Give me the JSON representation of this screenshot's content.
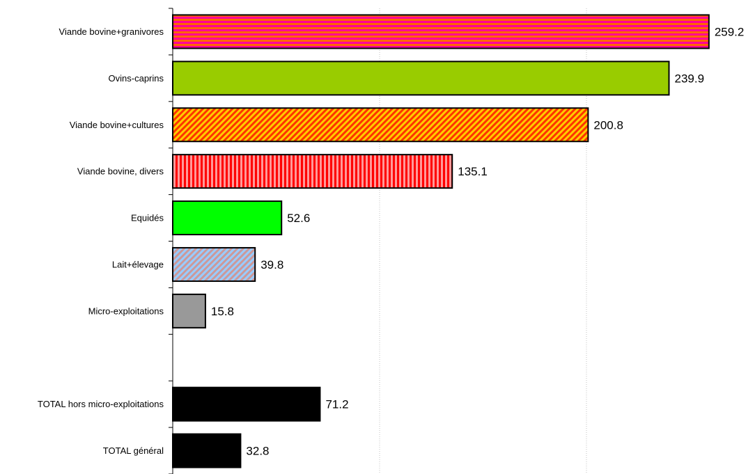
{
  "chart_data": {
    "type": "bar",
    "orientation": "horizontal",
    "categories": [
      "Viande bovine+granivores",
      "Ovins-caprins",
      "Viande bovine+cultures",
      "Viande bovine, divers",
      "Equidés",
      "Lait+élevage",
      "Micro-exploitations",
      "",
      "TOTAL hors micro-exploitations",
      "TOTAL général"
    ],
    "values": [
      259.2,
      239.9,
      200.8,
      135.1,
      52.6,
      39.8,
      15.8,
      null,
      71.2,
      32.8
    ],
    "value_labels": [
      "259.2",
      "239.9",
      "200.8",
      "135.1",
      "52.6",
      "39.8",
      "15.8",
      "",
      "71.2",
      "32.8"
    ],
    "xlim": [
      0,
      300
    ],
    "x_gridlines": [
      100,
      200
    ],
    "grid": "vertical dotted",
    "legend": "none",
    "bar_styles": [
      {
        "pattern": "horizontal-stripes",
        "color1": "#ff0099",
        "color2": "#ff6600"
      },
      {
        "pattern": "solid",
        "color1": "#99cc00"
      },
      {
        "pattern": "diagonal-stripes",
        "color1": "#ff3300",
        "color2": "#ffcc00"
      },
      {
        "pattern": "vertical-stripes",
        "color1": "#ff0000",
        "color2": "#ff9999"
      },
      {
        "pattern": "solid",
        "color1": "#00ff00"
      },
      {
        "pattern": "diagonal-stripes",
        "color1": "#99ccff",
        "color2": "#cc9999"
      },
      {
        "pattern": "solid",
        "color1": "#999999"
      },
      null,
      {
        "pattern": "solid",
        "color1": "#000000"
      },
      {
        "pattern": "solid",
        "color1": "#000000"
      }
    ]
  }
}
